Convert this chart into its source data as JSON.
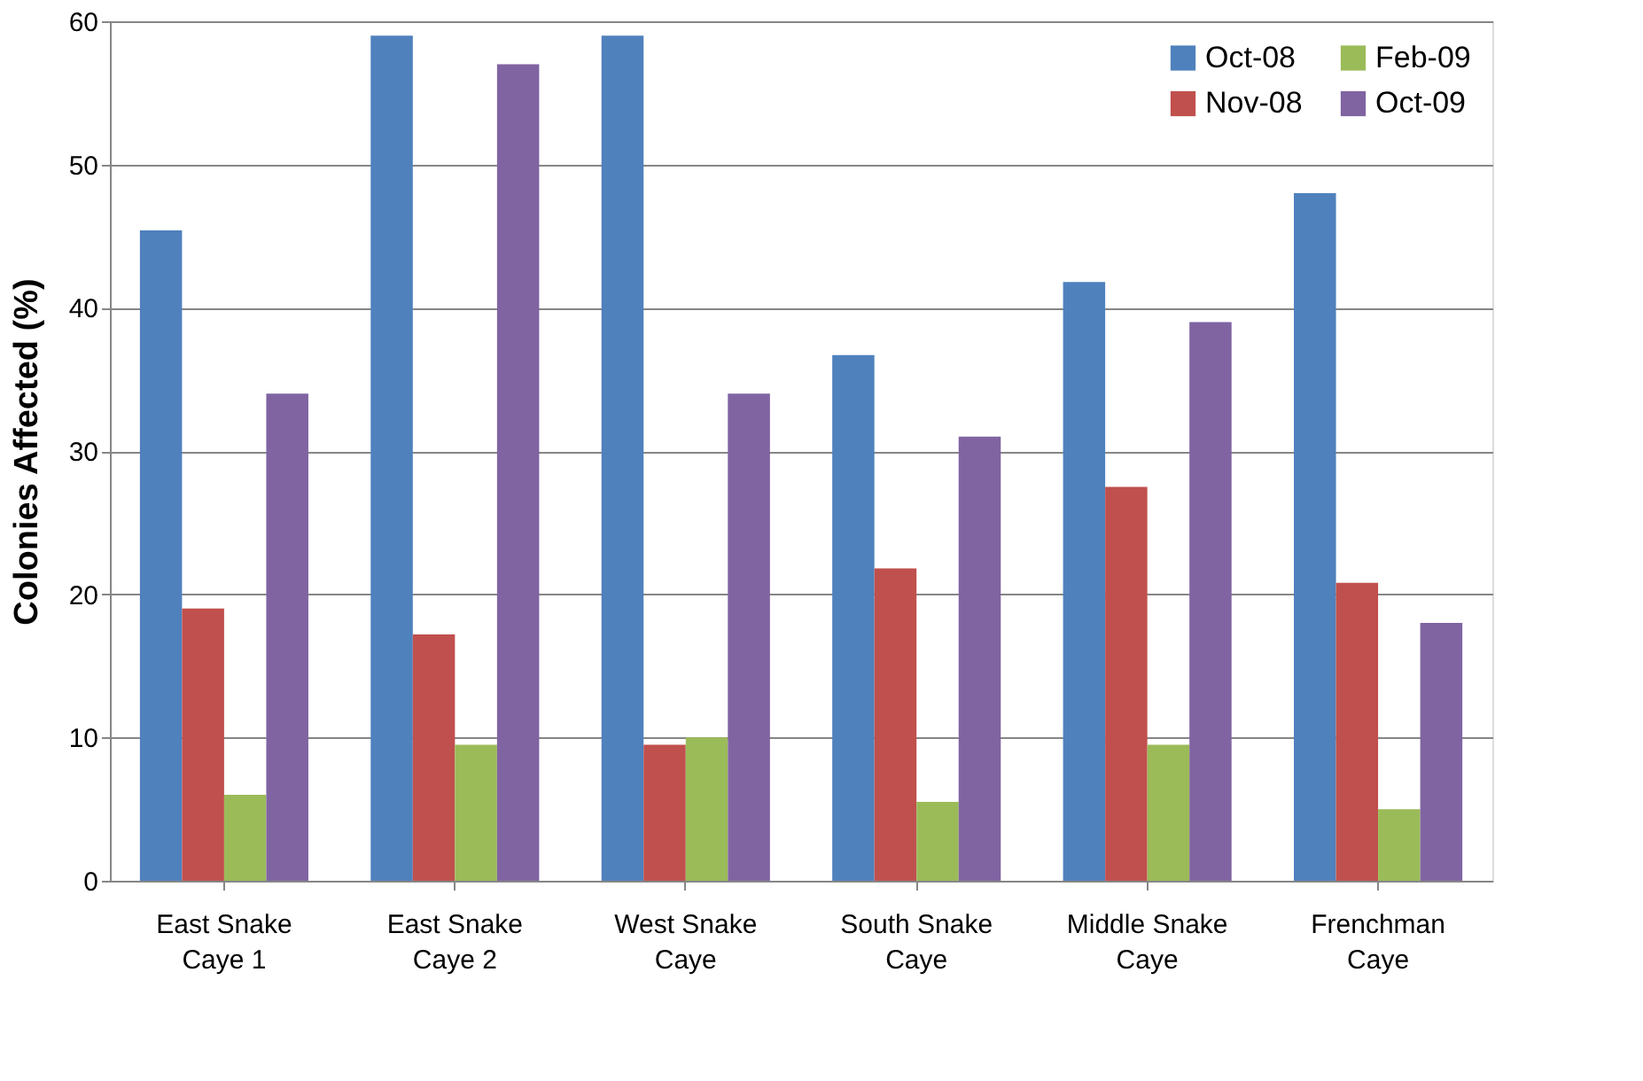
{
  "chart_data": {
    "type": "bar",
    "ylabel": "Colonies Affected (%)",
    "categories": [
      "East Snake Caye 1",
      "East Snake Caye 2",
      "West Snake Caye",
      "South Snake Caye",
      "Middle Snake Caye",
      "Frenchman Caye"
    ],
    "series": [
      {
        "name": "Oct-08",
        "color": "#4f81bd",
        "values": [
          45.4,
          59.0,
          59.0,
          36.7,
          41.8,
          48.0
        ]
      },
      {
        "name": "Nov-08",
        "color": "#c0504d",
        "values": [
          19.0,
          17.2,
          9.5,
          21.8,
          27.5,
          20.8
        ]
      },
      {
        "name": "Feb-09",
        "color": "#9bbb59",
        "values": [
          6.0,
          9.5,
          10.0,
          5.5,
          9.5,
          5.0
        ]
      },
      {
        "name": "Oct-09",
        "color": "#8064a2",
        "values": [
          34.0,
          57.0,
          34.0,
          31.0,
          39.0,
          18.0
        ]
      }
    ],
    "ylim": [
      0,
      60
    ],
    "yticks": [
      0,
      10,
      20,
      30,
      40,
      50,
      60
    ],
    "grid": "y",
    "legend": "top right"
  }
}
